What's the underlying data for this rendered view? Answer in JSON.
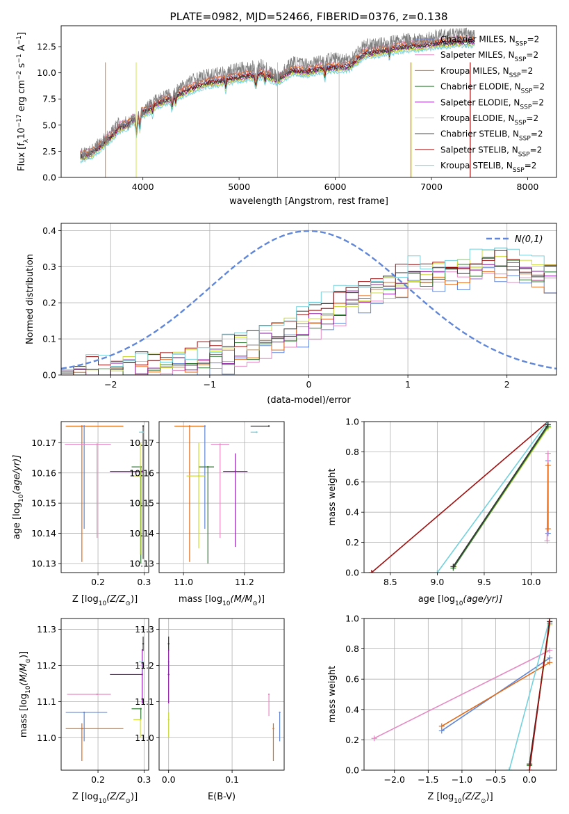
{
  "chart_data": [
    {
      "type": "line",
      "title": "PLATE=0982, MJD=52466, FIBERID=0376, z=0.138",
      "xlabel": "wavelength [Angstrom, rest frame]",
      "ylabel": "Flux [f",
      "ylabel_sub": "λ",
      "ylabel_mid": "10",
      "ylabel_sup": "−17",
      "ylabel_units": " erg cm",
      "ylabel_sup2": "−2",
      "ylabel_units2": " s",
      "ylabel_sup3": "−1",
      "ylabel_units3": " A",
      "ylabel_sup4": "−1",
      "ylabel_close": "]",
      "xlim": [
        3150,
        8300
      ],
      "ylim": [
        0,
        14.5
      ],
      "xticks": [
        4000,
        5000,
        6000,
        7000,
        8000
      ],
      "yticks": [
        0.0,
        2.5,
        5.0,
        7.5,
        10.0,
        12.5
      ],
      "observed": {
        "color": "#7f7f7f",
        "x": [
          3350,
          3450,
          3550,
          3650,
          3750,
          3850,
          3950,
          4050,
          4150,
          4250,
          4350,
          4500,
          4650,
          4800,
          4950,
          5100,
          5250,
          5400,
          5550,
          5700,
          5850,
          6000,
          6150,
          6300,
          6450,
          6600,
          6750,
          6900,
          7050,
          7200,
          7350,
          7450
        ],
        "y": [
          2.2,
          2.4,
          3.3,
          4.0,
          5.2,
          5.2,
          6.2,
          6.7,
          7.6,
          7.8,
          8.3,
          9.3,
          9.7,
          10.0,
          10.3,
          10.5,
          10.7,
          9.5,
          11.0,
          10.8,
          11.2,
          11.4,
          11.3,
          12.6,
          12.7,
          13.0,
          13.2,
          13.1,
          13.5,
          13.6,
          13.7,
          13.6
        ]
      },
      "model_x": [
        3350,
        3450,
        3550,
        3650,
        3750,
        3850,
        3950,
        4050,
        4150,
        4250,
        4350,
        4500,
        4650,
        4800,
        4950,
        5100,
        5250,
        5400,
        5550,
        5700,
        5850,
        6000,
        6150,
        6300,
        6450,
        6600,
        6750,
        6900,
        7050,
        7200,
        7350,
        7450
      ],
      "model_base": [
        1.9,
        2.1,
        2.8,
        3.6,
        4.6,
        5.0,
        5.9,
        6.3,
        7.0,
        7.3,
        7.7,
        8.4,
        8.9,
        9.1,
        9.4,
        9.6,
        9.8,
        9.2,
        10.1,
        10.0,
        10.3,
        10.4,
        10.5,
        11.7,
        11.9,
        12.2,
        12.4,
        12.5,
        12.7,
        12.8,
        12.9,
        12.9
      ],
      "series": [
        {
          "name": "Chabrier MILES, N",
          "sub": "SSP",
          "suffix": "=2",
          "color": "#5f86d8",
          "offset": 0.25
        },
        {
          "name": "Salpeter MILES, N",
          "sub": "SSP",
          "suffix": "=2",
          "color": "#e58ac3",
          "offset": 0.55
        },
        {
          "name": "Kroupa MILES, N",
          "sub": "SSP",
          "suffix": "=2",
          "color": "#e06a16",
          "offset": 0.45
        },
        {
          "name": "Chabrier ELODIE, N",
          "sub": "SSP",
          "suffix": "=2",
          "color": "#2f7a31",
          "offset": 0.0
        },
        {
          "name": "Salpeter ELODIE, N",
          "sub": "SSP",
          "suffix": "=2",
          "color": "#8e1aa5",
          "offset": -0.1
        },
        {
          "name": "Kroupa ELODIE, N",
          "sub": "SSP",
          "suffix": "=2",
          "color": "#cddc39",
          "offset": -0.2
        },
        {
          "name": "Chabrier STELIB, N",
          "sub": "SSP",
          "suffix": "=2",
          "color": "#333333",
          "offset": 0.1
        },
        {
          "name": "Salpeter STELIB, N",
          "sub": "SSP",
          "suffix": "=2",
          "color": "#a00d0d",
          "offset": 0.2
        },
        {
          "name": "Kroupa STELIB, N",
          "sub": "SSP",
          "suffix": "=2",
          "color": "#72d1dc",
          "offset": -0.35
        }
      ],
      "legend": "upper-right",
      "grid": false
    },
    {
      "type": "histogram",
      "xlabel": "(data-model)/error",
      "ylabel": "Normed distribution",
      "xlim": [
        -2.5,
        2.5
      ],
      "ylim": [
        0,
        0.42
      ],
      "xticks": [
        -2,
        -1,
        0,
        1,
        2
      ],
      "yticks": [
        0.0,
        0.1,
        0.2,
        0.3,
        0.4
      ],
      "grid": true,
      "normal_curve": {
        "label": "N(0,1)",
        "color": "#5f86d8",
        "mu": 0,
        "sigma": 1
      },
      "bin_edges_start": -2.5,
      "bin_width": 0.125,
      "hist_base": [
        0.0,
        0.0,
        0.0,
        0.005,
        0.01,
        0.015,
        0.02,
        0.025,
        0.03,
        0.035,
        0.04,
        0.045,
        0.05,
        0.06,
        0.07,
        0.08,
        0.095,
        0.11,
        0.12,
        0.135,
        0.15,
        0.17,
        0.19,
        0.21,
        0.22,
        0.24,
        0.25,
        0.26,
        0.27,
        0.275,
        0.28,
        0.285,
        0.29,
        0.3,
        0.31,
        0.31,
        0.3,
        0.29,
        0.28,
        0.27
      ],
      "hist_series_colors": [
        "#5f86d8",
        "#e58ac3",
        "#e06a16",
        "#2f7a31",
        "#8e1aa5",
        "#cddc39",
        "#333333",
        "#a00d0d",
        "#72d1dc"
      ]
    },
    {
      "type": "scatter-errorbar",
      "xlabel": "Z [log",
      "xlabel_sub": "10",
      "xlabel_rest": "(Z/Z",
      "xlabel_sun": "⊙",
      "xlabel_close": ")]",
      "ylabel": "age  [log",
      "ylabel_sub": "10",
      "ylabel_rest": "(age/yr)]",
      "xlim": [
        0.12,
        0.31
      ],
      "ylim": [
        10.127,
        10.177
      ],
      "xticks": [
        0.2,
        0.3
      ],
      "yticks": [
        10.13,
        10.14,
        10.15,
        10.16,
        10.17
      ],
      "grid": true,
      "points": [
        {
          "color": "#e06a16",
          "x": 0.165,
          "xerr": [
            0.035,
            0.09
          ],
          "y": 10.1755,
          "yerr": [
            0.045,
            0.0
          ]
        },
        {
          "color": "#5f86d8",
          "x": 0.17,
          "xerr": [
            0.0,
            0.0
          ],
          "y": 10.1755,
          "yerr": [
            0.034,
            0.0
          ]
        },
        {
          "color": "#e58ac3",
          "x": 0.198,
          "xerr": [
            0.07,
            0.03
          ],
          "y": 10.1695,
          "yerr": [
            0.031,
            0.0
          ]
        },
        {
          "color": "#8e1aa5",
          "x": 0.296,
          "xerr": [
            0.07,
            0.0
          ],
          "y": 10.1605,
          "yerr": [
            0.0,
            0.0
          ]
        },
        {
          "color": "#2f7a31",
          "x": 0.293,
          "xerr": [
            0.02,
            0.0
          ],
          "y": 10.162,
          "yerr": [
            0.032,
            0.0
          ]
        },
        {
          "color": "#cddc39",
          "x": 0.292,
          "xerr": [
            0.015,
            0.0
          ],
          "y": 10.159,
          "yerr": [
            0.026,
            0.011
          ]
        },
        {
          "color": "#333333",
          "x": 0.298,
          "xerr": [
            0.0,
            0.0
          ],
          "y": 10.1755,
          "yerr": [
            0.044,
            0.0
          ]
        },
        {
          "color": "#72d1dc",
          "x": 0.297,
          "xerr": [
            0.008,
            0.0
          ],
          "y": 10.1735,
          "yerr": [
            0.0,
            0.0
          ]
        }
      ]
    },
    {
      "type": "scatter-errorbar",
      "xlabel": "mass [log",
      "xlabel_sub": "10",
      "xlabel_rest": "(M/M",
      "xlabel_sun": "⊙",
      "xlabel_close": ")]",
      "xlim": [
        10.92,
        11.33
      ],
      "ylim": [
        10.127,
        10.177
      ],
      "xticks": [
        11.0,
        11.2
      ],
      "yticks": [
        10.13,
        10.14,
        10.15,
        10.16,
        10.17
      ],
      "grid": true,
      "points": [
        {
          "color": "#e06a16",
          "x": 11.02,
          "xerr": [
            0.05,
            0.05
          ],
          "y": 10.1755,
          "yerr": [
            0.045,
            0.0
          ]
        },
        {
          "color": "#5f86d8",
          "x": 11.07,
          "xerr": [
            0.0,
            0.0
          ],
          "y": 10.1755,
          "yerr": [
            0.034,
            0.0
          ]
        },
        {
          "color": "#e58ac3",
          "x": 11.12,
          "xerr": [
            0.03,
            0.03
          ],
          "y": 10.1695,
          "yerr": [
            0.031,
            0.0
          ]
        },
        {
          "color": "#8e1aa5",
          "x": 11.17,
          "xerr": [
            0.04,
            0.04
          ],
          "y": 10.1605,
          "yerr": [
            0.025,
            0.006
          ]
        },
        {
          "color": "#2f7a31",
          "x": 11.08,
          "xerr": [
            0.03,
            0.02
          ],
          "y": 10.162,
          "yerr": [
            0.032,
            0.0
          ]
        },
        {
          "color": "#cddc39",
          "x": 11.05,
          "xerr": [
            0.04,
            0.02
          ],
          "y": 10.159,
          "yerr": [
            0.024,
            0.011
          ]
        },
        {
          "color": "#333333",
          "x": 11.28,
          "xerr": [
            0.06,
            0.0
          ],
          "y": 10.1755,
          "yerr": [
            0.0,
            0.0
          ]
        },
        {
          "color": "#72d1dc",
          "x": 11.24,
          "xerr": [
            0.02,
            0.0
          ],
          "y": 10.1735,
          "yerr": [
            0.0,
            0.0
          ]
        }
      ]
    },
    {
      "type": "line",
      "xlabel": "age  [log",
      "xlabel_sub": "10",
      "xlabel_rest": "(age/yr)]",
      "ylabel": "mass weight",
      "xlim": [
        8.22,
        10.27
      ],
      "ylim": [
        0,
        1
      ],
      "xticks": [
        8.5,
        9.0,
        9.5,
        10.0
      ],
      "yticks": [
        0.0,
        0.2,
        0.4,
        0.6,
        0.8,
        1.0
      ],
      "grid": true,
      "series": [
        {
          "color": "#a00d0d",
          "x": [
            8.3,
            10.18
          ],
          "y": [
            0.0,
            1.0
          ]
        },
        {
          "color": "#72d1dc",
          "x": [
            9.0,
            10.18
          ],
          "y": [
            0.0,
            1.0
          ]
        },
        {
          "color": "#cddc39",
          "x": [
            9.18,
            10.18
          ],
          "y": [
            0.04,
            0.96
          ]
        },
        {
          "color": "#2f7a31",
          "x": [
            9.17,
            10.18
          ],
          "y": [
            0.03,
            0.97
          ]
        },
        {
          "color": "#333333",
          "x": [
            9.17,
            10.18
          ],
          "y": [
            0.04,
            0.98
          ]
        },
        {
          "color": "#5f86d8",
          "x": [
            10.18,
            10.18
          ],
          "y": [
            0.26,
            0.74
          ]
        },
        {
          "color": "#e58ac3",
          "x": [
            10.17,
            10.18
          ],
          "y": [
            0.21,
            0.79
          ]
        },
        {
          "color": "#e06a16",
          "x": [
            10.18,
            10.18
          ],
          "y": [
            0.29,
            0.71
          ]
        }
      ]
    },
    {
      "type": "scatter-errorbar",
      "xlabel": "Z [log",
      "xlabel_sub": "10",
      "xlabel_rest": "(Z/Z",
      "xlabel_sun": "⊙",
      "xlabel_close": ")]",
      "ylabel": "mass [log",
      "ylabel_sub": "10",
      "ylabel_rest": "(M/M",
      "ylabel_sun": "⊙",
      "ylabel_close": ")]",
      "xlim": [
        0.12,
        0.31
      ],
      "ylim": [
        10.91,
        11.33
      ],
      "xticks": [
        0.2,
        0.3
      ],
      "yticks": [
        11.0,
        11.1,
        11.2,
        11.3
      ],
      "grid": true,
      "points": [
        {
          "color": "#e06a16",
          "x": 0.165,
          "xerr": [
            0.035,
            0.09
          ],
          "y": 11.025,
          "yerr": [
            0.09,
            0.015
          ]
        },
        {
          "color": "#5f86d8",
          "x": 0.17,
          "xerr": [
            0.04,
            0.05
          ],
          "y": 11.07,
          "yerr": [
            0.08,
            0.0
          ]
        },
        {
          "color": "#e58ac3",
          "x": 0.198,
          "xerr": [
            0.065,
            0.03
          ],
          "y": 11.12,
          "yerr": [
            0.0,
            0.0
          ]
        },
        {
          "color": "#8e1aa5",
          "x": 0.296,
          "xerr": [
            0.07,
            0.0
          ],
          "y": 11.175,
          "yerr": [
            0.08,
            0.07
          ]
        },
        {
          "color": "#2f7a31",
          "x": 0.293,
          "xerr": [
            0.02,
            0.0
          ],
          "y": 11.08,
          "yerr": [
            0.03,
            0.0
          ]
        },
        {
          "color": "#cddc39",
          "x": 0.292,
          "xerr": [
            0.015,
            0.0
          ],
          "y": 11.05,
          "yerr": [
            0.05,
            0.0
          ]
        },
        {
          "color": "#333333",
          "x": 0.298,
          "xerr": [
            0.0,
            0.0
          ],
          "y": 11.26,
          "yerr": [
            0.02,
            0.02
          ]
        },
        {
          "color": "#72d1dc",
          "x": 0.297,
          "xerr": [
            0.008,
            0.0
          ],
          "y": 11.21,
          "yerr": [
            0.03,
            0.0
          ]
        }
      ]
    },
    {
      "type": "scatter-errorbar",
      "xlabel": "E(B-V)",
      "xlim": [
        -0.015,
        0.182
      ],
      "ylim": [
        10.91,
        11.33
      ],
      "xticks": [
        0.0,
        0.1
      ],
      "yticks": [
        11.0,
        11.1,
        11.2,
        11.3
      ],
      "grid": true,
      "points": [
        {
          "color": "#333333",
          "x": 0.0,
          "xerr": [
            0.0,
            0.0
          ],
          "y": 11.26,
          "yerr": [
            0.02,
            0.02
          ]
        },
        {
          "color": "#72d1dc",
          "x": 0.0,
          "xerr": [
            0.0,
            0.0
          ],
          "y": 11.21,
          "yerr": [
            0.03,
            0.0
          ]
        },
        {
          "color": "#8e1aa5",
          "x": 0.0,
          "xerr": [
            0.0,
            0.0
          ],
          "y": 11.175,
          "yerr": [
            0.08,
            0.07
          ]
        },
        {
          "color": "#cddc39",
          "x": 0.0,
          "xerr": [
            0.0,
            0.0
          ],
          "y": 11.05,
          "yerr": [
            0.05,
            0.02
          ]
        },
        {
          "color": "#e58ac3",
          "x": 0.158,
          "xerr": [
            0.0,
            0.0
          ],
          "y": 11.12,
          "yerr": [
            0.06,
            0.0
          ]
        },
        {
          "color": "#e06a16",
          "x": 0.165,
          "xerr": [
            0.0,
            0.0
          ],
          "y": 11.025,
          "yerr": [
            0.09,
            0.015
          ]
        },
        {
          "color": "#5f86d8",
          "x": 0.175,
          "xerr": [
            0.0,
            0.0
          ],
          "y": 11.07,
          "yerr": [
            0.08,
            0.0
          ]
        }
      ]
    },
    {
      "type": "line",
      "xlabel": "Z [log",
      "xlabel_sub": "10",
      "xlabel_rest": "(Z/Z",
      "xlabel_sun": "⊙",
      "xlabel_close": ")]",
      "ylabel": "mass weight",
      "xlim": [
        -2.45,
        0.4
      ],
      "ylim": [
        0,
        1
      ],
      "xticks": [
        -2.0,
        -1.5,
        -1.0,
        -0.5,
        0.0
      ],
      "yticks": [
        0.0,
        0.2,
        0.4,
        0.6,
        0.8,
        1.0
      ],
      "grid": true,
      "series": [
        {
          "color": "#e58ac3",
          "x": [
            -2.3,
            0.3
          ],
          "y": [
            0.21,
            0.79
          ]
        },
        {
          "color": "#5f86d8",
          "x": [
            -1.3,
            0.3
          ],
          "y": [
            0.26,
            0.74
          ]
        },
        {
          "color": "#e06a16",
          "x": [
            -1.3,
            0.3
          ],
          "y": [
            0.29,
            0.71
          ]
        },
        {
          "color": "#72d1dc",
          "x": [
            -0.3,
            0.3
          ],
          "y": [
            0.0,
            1.0
          ]
        },
        {
          "color": "#cddc39",
          "x": [
            0.0,
            0.3
          ],
          "y": [
            0.04,
            0.96
          ]
        },
        {
          "color": "#2f7a31",
          "x": [
            0.0,
            0.3
          ],
          "y": [
            0.03,
            0.97
          ]
        },
        {
          "color": "#333333",
          "x": [
            0.0,
            0.3
          ],
          "y": [
            0.04,
            0.98
          ]
        },
        {
          "color": "#a00d0d",
          "x": [
            0.0,
            0.3
          ],
          "y": [
            0.0,
            1.0
          ]
        }
      ]
    }
  ]
}
